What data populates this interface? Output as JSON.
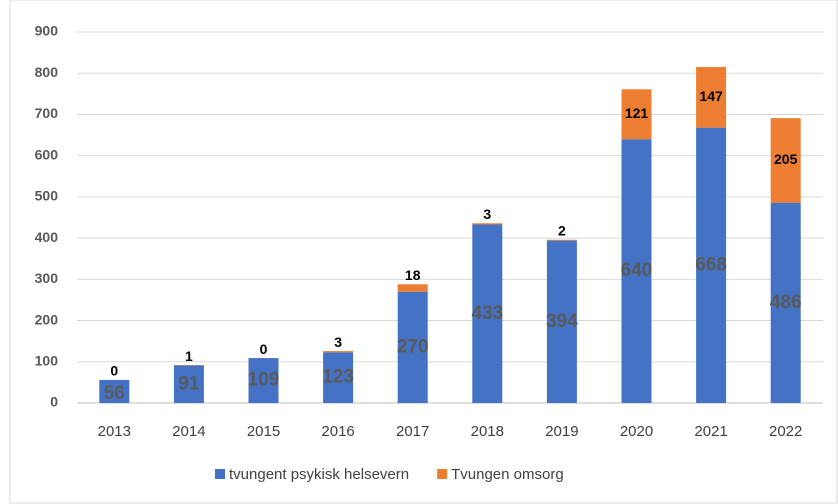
{
  "chart_data": {
    "type": "bar",
    "stacked": true,
    "categories": [
      "2013",
      "2014",
      "2015",
      "2016",
      "2017",
      "2018",
      "2019",
      "2020",
      "2021",
      "2022"
    ],
    "series": [
      {
        "name": "tvungent psykisk helsevern",
        "color": "#4472c4",
        "values": [
          56,
          91,
          109,
          123,
          270,
          433,
          394,
          640,
          668,
          486
        ]
      },
      {
        "name": "Tvungen omsorg",
        "color": "#ed7d31",
        "values": [
          0,
          1,
          0,
          3,
          18,
          3,
          2,
          121,
          147,
          205
        ]
      }
    ],
    "ylim": [
      0,
      900
    ],
    "yticks": [
      0,
      100,
      200,
      300,
      400,
      500,
      600,
      700,
      800,
      900
    ],
    "grid": true,
    "legend": "bottom"
  }
}
